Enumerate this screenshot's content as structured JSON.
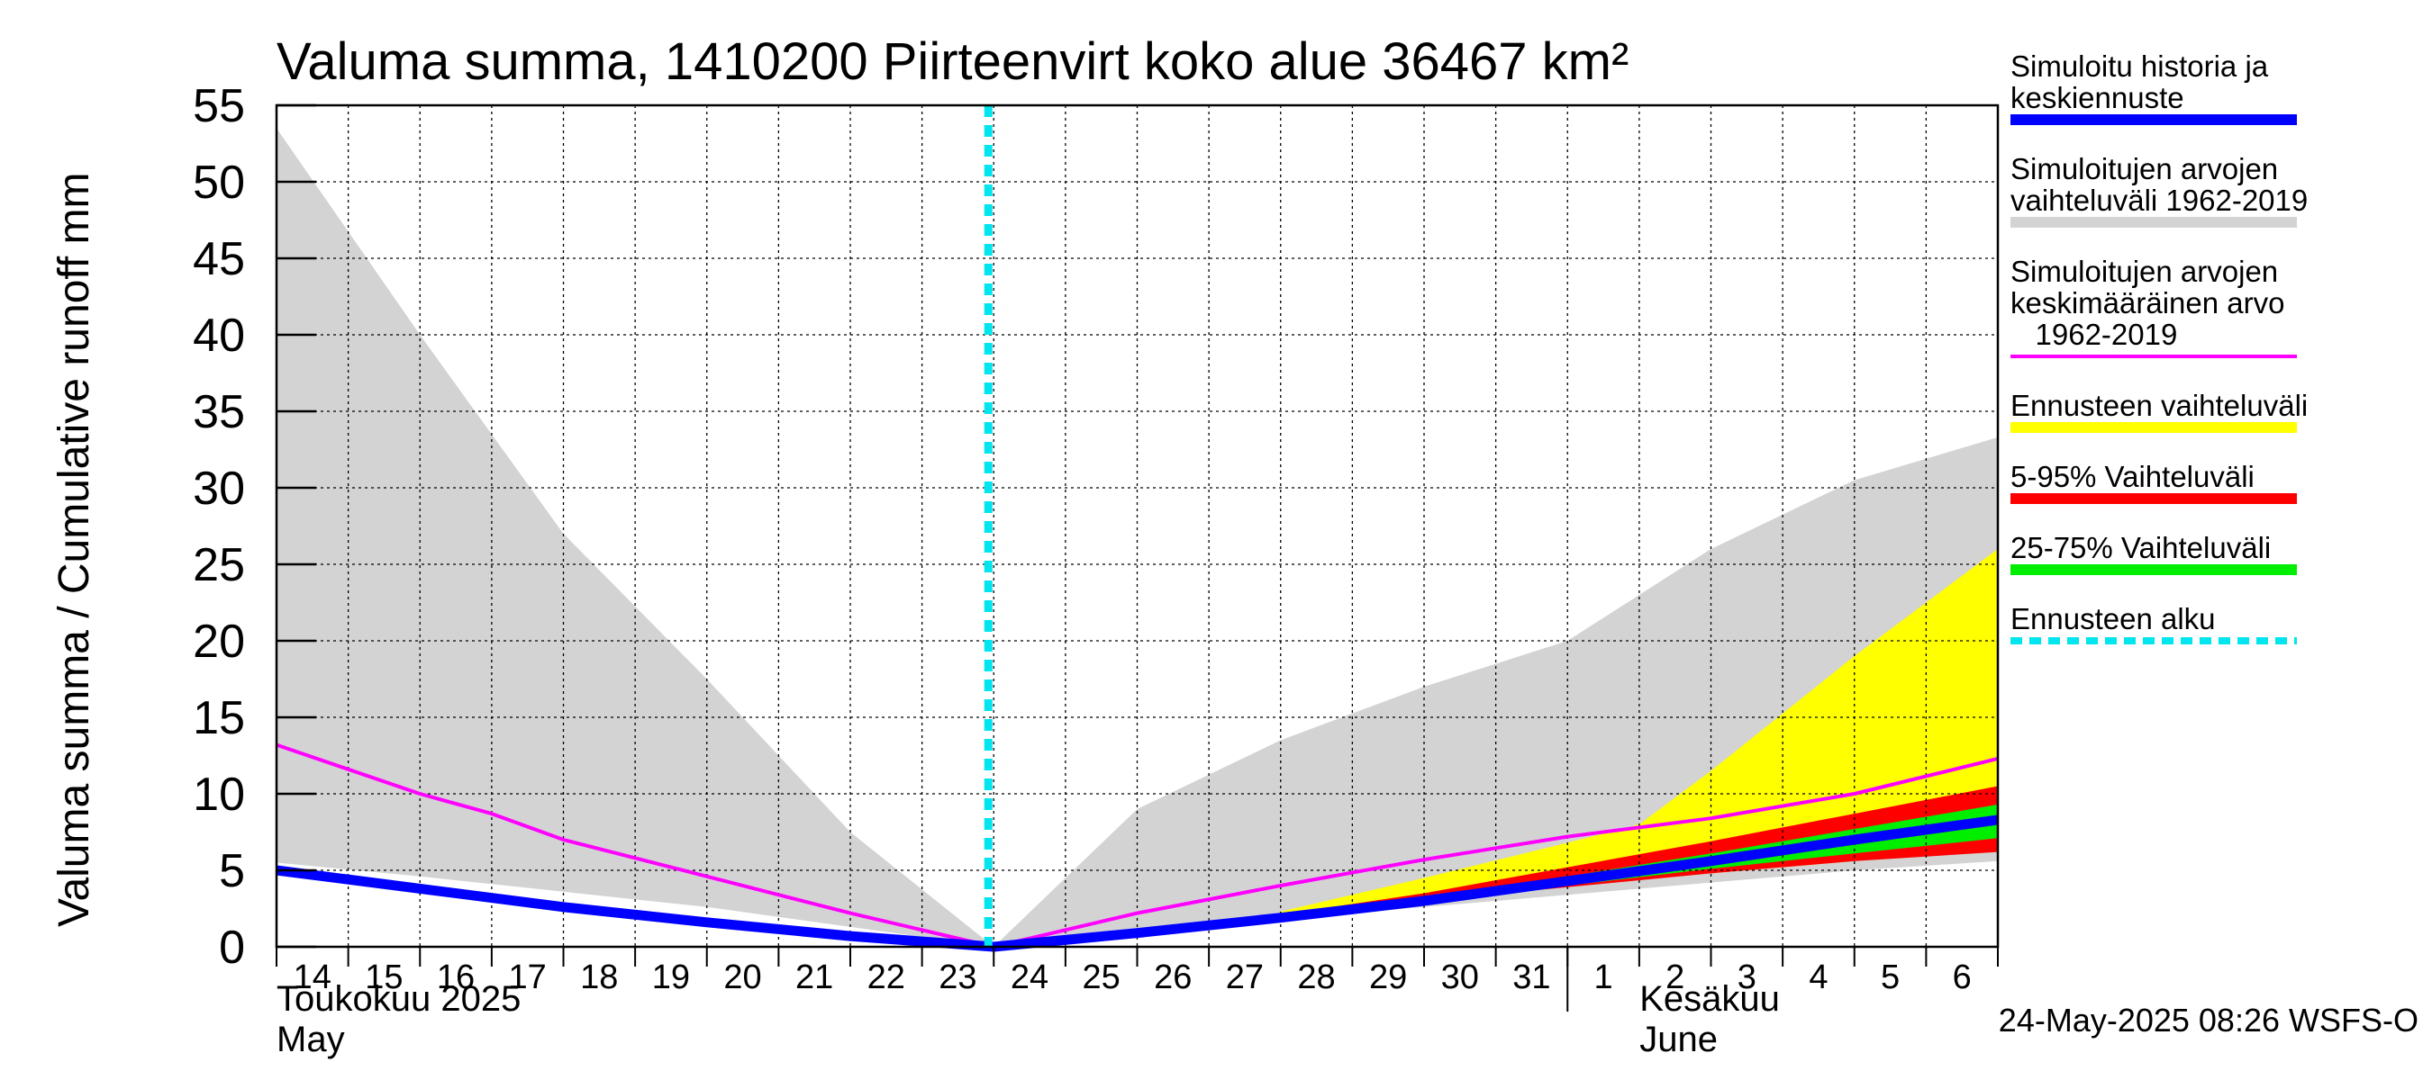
{
  "chart_data": {
    "type": "area",
    "title": "Valuma summa, 1410200 Piirteenvirt koko alue 36467 km²",
    "ylabel": "Valuma summa / Cumulative runoff    mm",
    "ylim": [
      0,
      55
    ],
    "yticks": [
      0,
      5,
      10,
      15,
      20,
      25,
      30,
      35,
      40,
      45,
      50,
      55
    ],
    "grid": true,
    "x_start": "2025-05-14",
    "x_end": "2025-06-07",
    "x_tick_labels": [
      "14",
      "15",
      "16",
      "17",
      "18",
      "19",
      "20",
      "21",
      "22",
      "23",
      "24",
      "25",
      "26",
      "27",
      "28",
      "29",
      "30",
      "31",
      "1",
      "2",
      "3",
      "4",
      "5",
      "6"
    ],
    "month_labels": [
      {
        "line1": "Toukokuu  2025",
        "line2": "May",
        "start": "2025-05-14"
      },
      {
        "line1": "Kesäkuu",
        "line2": "June",
        "start": "2025-06-01"
      }
    ],
    "forecast_start": "2025-05-24",
    "series": [
      {
        "name": "Simuloitujen arvojen vaihteluväli 1962-2019",
        "kind": "band",
        "color": "#d3d3d3",
        "x": [
          "2025-05-14",
          "2025-05-16",
          "2025-05-18",
          "2025-05-20",
          "2025-05-22",
          "2025-05-24",
          "2025-05-26",
          "2025-05-28",
          "2025-05-30",
          "2025-06-01",
          "2025-06-03",
          "2025-06-05",
          "2025-06-07"
        ],
        "low": [
          5.5,
          4.6,
          3.6,
          2.6,
          1.3,
          0,
          0.8,
          1.8,
          2.6,
          3.4,
          4.2,
          5.0,
          5.6
        ],
        "high": [
          53.5,
          40,
          27,
          17.5,
          7.5,
          0,
          9,
          13.5,
          17,
          20,
          26,
          30.5,
          33.3
        ]
      },
      {
        "name": "Ennusteen vaihteluväli",
        "kind": "band",
        "color": "#ffff00",
        "x": [
          "2025-05-28",
          "2025-05-30",
          "2025-06-01",
          "2025-06-02",
          "2025-06-03",
          "2025-06-05",
          "2025-06-07"
        ],
        "low": [
          2.0,
          3.0,
          4.0,
          4.4,
          4.8,
          5.6,
          6.4
        ],
        "high": [
          2.3,
          4.5,
          6.8,
          8.0,
          11.5,
          19.0,
          26.0
        ]
      },
      {
        "name": "5-95% Vaihteluväli",
        "kind": "band",
        "color": "#ff0000",
        "x": [
          "2025-05-28",
          "2025-05-30",
          "2025-06-01",
          "2025-06-03",
          "2025-06-05",
          "2025-06-07"
        ],
        "low": [
          2.0,
          3.0,
          3.9,
          4.8,
          5.6,
          6.2
        ],
        "high": [
          2.1,
          3.5,
          5.2,
          6.9,
          8.7,
          10.5
        ]
      },
      {
        "name": "25-75% Vaihteluväli",
        "kind": "band",
        "color": "#00ee00",
        "x": [
          "2025-05-28",
          "2025-05-30",
          "2025-06-01",
          "2025-06-03",
          "2025-06-05",
          "2025-06-07"
        ],
        "low": [
          2.0,
          3.0,
          4.0,
          5.1,
          6.1,
          7.1
        ],
        "high": [
          2.0,
          3.2,
          4.6,
          6.1,
          7.7,
          9.3
        ]
      },
      {
        "name": "Simuloitujen arvojen keskimääräinen arvo 1962-2019",
        "kind": "line",
        "color": "#ff00ff",
        "x": [
          "2025-05-14",
          "2025-05-16",
          "2025-05-17",
          "2025-05-18",
          "2025-05-20",
          "2025-05-22",
          "2025-05-24",
          "2025-05-26",
          "2025-05-28",
          "2025-05-30",
          "2025-06-01",
          "2025-06-03",
          "2025-06-05",
          "2025-06-07"
        ],
        "values": [
          13.2,
          10.0,
          8.7,
          7.0,
          4.6,
          2.2,
          0,
          2.2,
          4.0,
          5.7,
          7.2,
          8.4,
          10.0,
          12.3
        ]
      },
      {
        "name": "Simuloitu historia ja keskiennuste",
        "kind": "line",
        "color": "#0000ff",
        "x": [
          "2025-05-14",
          "2025-05-16",
          "2025-05-18",
          "2025-05-20",
          "2025-05-22",
          "2025-05-24",
          "2025-05-26",
          "2025-05-28",
          "2025-05-30",
          "2025-06-01",
          "2025-06-03",
          "2025-06-05",
          "2025-06-07"
        ],
        "values": [
          5.0,
          3.8,
          2.6,
          1.6,
          0.7,
          0,
          0.9,
          1.9,
          3.0,
          4.3,
          5.6,
          7.0,
          8.3
        ]
      }
    ],
    "legend": {
      "placement": "right",
      "items": [
        {
          "lines": [
            "Simuloitu historia ja",
            "keskiennuste"
          ],
          "color": "#0000ff",
          "style": "solid"
        },
        {
          "lines": [
            "Simuloitujen arvojen",
            "vaihteluväli 1962-2019"
          ],
          "color": "#d3d3d3",
          "style": "solid"
        },
        {
          "lines": [
            "Simuloitujen arvojen",
            "keskimääräinen arvo",
            "   1962-2019"
          ],
          "color": "#ff00ff",
          "style": "thin"
        },
        {
          "lines": [
            "Ennusteen vaihteluväli"
          ],
          "color": "#ffff00",
          "style": "solid"
        },
        {
          "lines": [
            "5-95% Vaihteluväli"
          ],
          "color": "#ff0000",
          "style": "solid"
        },
        {
          "lines": [
            "25-75% Vaihteluväli"
          ],
          "color": "#00ee00",
          "style": "solid"
        },
        {
          "lines": [
            "Ennusteen alku"
          ],
          "color": "#00e5ee",
          "style": "dashed"
        }
      ]
    },
    "footer": "24-May-2025 08:26 WSFS-O"
  }
}
